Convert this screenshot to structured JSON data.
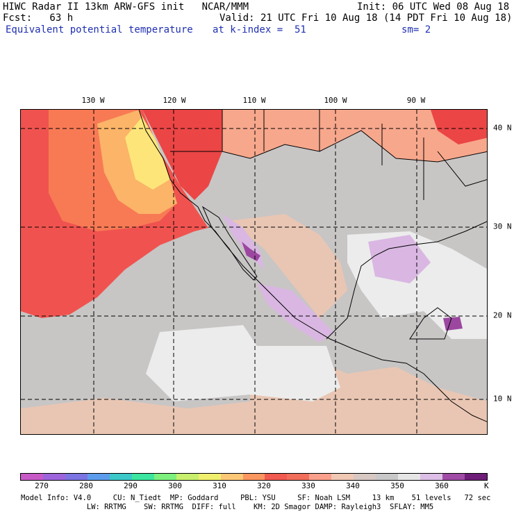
{
  "header": {
    "line1_left": "HIWC Radar II 13km ARW-GFS init   NCAR/MMM",
    "line1_right": "Init: 06 UTC Wed 08 Aug 18",
    "line2_left": "Fcst:   63 h",
    "line2_right": "Valid: 21 UTC Fri 10 Aug 18 (14 PDT Fri 10 Aug 18)",
    "field_name": "Equivalent potential temperature",
    "k_index": "at k-index =  51",
    "smoothing": "sm= 2"
  },
  "map": {
    "lon_labels": [
      "130 W",
      "120 W",
      "110 W",
      "100 W",
      "90 W"
    ],
    "lat_labels": [
      "40 N",
      "30 N",
      "20 N",
      "10 N"
    ],
    "colors": {
      "ocean_warm": "#f0534f",
      "ocean_warmer": "#f87a55",
      "coast_yellow": "#fde57a",
      "coast_orange": "#fbb468",
      "salmon": "#f7a78c",
      "tan": "#e9c6b3",
      "gray": "#c8c5c5",
      "light_gray": "#e0dcdc",
      "white": "#efefef",
      "lilac": "#d9b7e2",
      "purple": "#9b47a0",
      "red_hot": "#eb4545"
    }
  },
  "colorbar": {
    "tick_labels": [
      "270",
      "280",
      "290",
      "300",
      "310",
      "320",
      "330",
      "340",
      "350",
      "360"
    ],
    "unit": "K",
    "colors": [
      "#c85ac8",
      "#9d64dc",
      "#7b74e2",
      "#5d9cec",
      "#3cc8c8",
      "#3ce6a0",
      "#7ef07e",
      "#c8f06e",
      "#f0f06e",
      "#fcc878",
      "#fa9660",
      "#f05a50",
      "#f06e5a",
      "#faa08c",
      "#f0c8b4",
      "#d7c8c3",
      "#c8c8c8",
      "#e6e6e6",
      "#dcbee6",
      "#a04ba5",
      "#6e1e78"
    ]
  },
  "footer": {
    "line1": "Model Info: V4.0     CU: N_Tiedt  MP: Goddard     PBL: YSU     SF: Noah LSM     13 km    51 levels   72 sec",
    "line2": "               LW: RRTMG    SW: RRTMG  DIFF: full    KM: 2D Smagor DAMP: Rayleigh3  SFLAY: MM5"
  }
}
